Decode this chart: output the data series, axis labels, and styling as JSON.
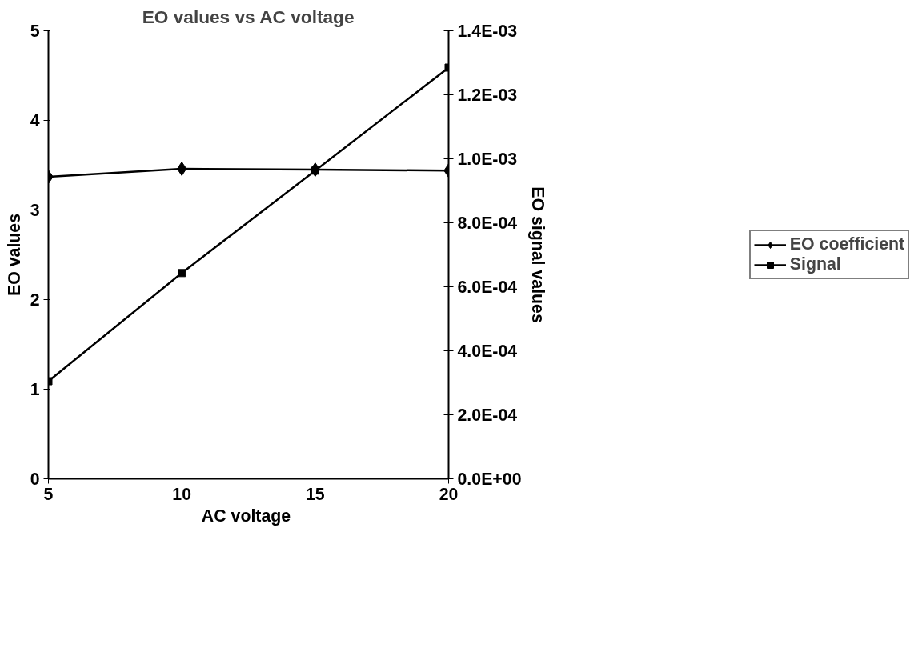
{
  "chart_data": {
    "type": "line",
    "title": "EO values vs AC voltage",
    "xlabel": "AC  voltage",
    "ylabel": "EO values",
    "y2label": "EO signal values",
    "x": [
      5,
      10,
      15,
      20
    ],
    "series": [
      {
        "name": "EO coefficient",
        "color": "#000000",
        "marker": "diamond",
        "values": [
          3.37,
          3.46,
          3.45,
          3.44
        ]
      },
      {
        "name": "Signal",
        "color": "#000000",
        "marker": "square",
        "axis": "y2",
        "values": [
          0.000305,
          0.000643,
          0.000963,
          0.001285
        ]
      }
    ],
    "xlim": [
      5,
      20
    ],
    "xticks": [
      5,
      10,
      15,
      20
    ],
    "ylim": [
      0,
      5
    ],
    "yticks": [
      0,
      1,
      2,
      3,
      4,
      5
    ],
    "y2lim": [
      0,
      0.0014
    ],
    "y2ticks": [
      {
        "value": 0,
        "label": "0.0E+00"
      },
      {
        "value": 0.0002,
        "label": "2.0E-04"
      },
      {
        "value": 0.0004,
        "label": "4.0E-04"
      },
      {
        "value": 0.0006,
        "label": "6.0E-04"
      },
      {
        "value": 0.0008,
        "label": "8.0E-04"
      },
      {
        "value": 0.001,
        "label": "1.0E-03"
      },
      {
        "value": 0.0012,
        "label": "1.2E-03"
      },
      {
        "value": 0.0014,
        "label": "1.4E-03"
      }
    ],
    "grid": false,
    "legend": "right",
    "line_style": "solid"
  }
}
